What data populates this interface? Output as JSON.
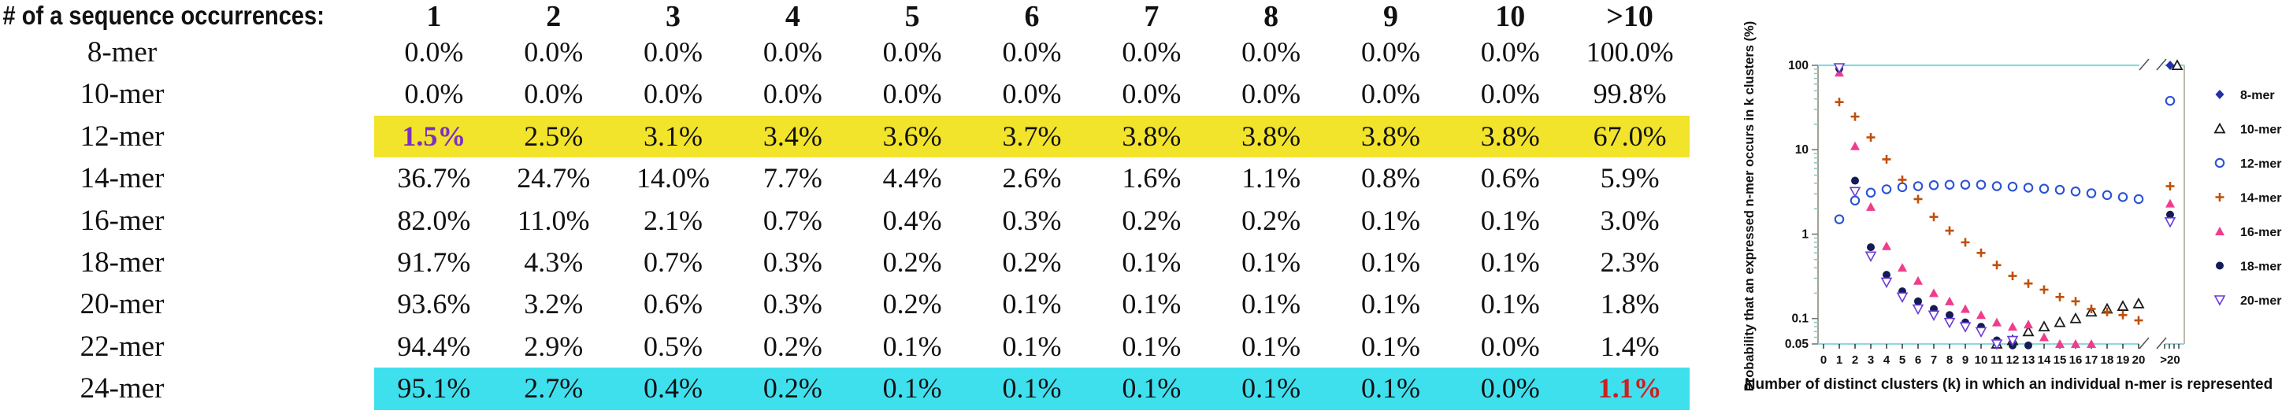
{
  "colors": {
    "highlight_yellow": "#f2e32b",
    "highlight_cyan": "#3fe0ee",
    "accent_purple": "#7b2fc4",
    "accent_red": "#cc2020",
    "axis_cyan": "#8fd8e0",
    "axis_gray": "#a3a394",
    "minor_tick": "#92c5c9"
  },
  "chart_data": [
    {
      "type": "table",
      "title": "# of a sequence occurrences:",
      "columns": [
        "1",
        "2",
        "3",
        "4",
        "5",
        "6",
        "7",
        "8",
        "9",
        "10",
        ">10"
      ],
      "rows": [
        {
          "label": "8-mer",
          "values": [
            "0.0%",
            "0.0%",
            "0.0%",
            "0.0%",
            "0.0%",
            "0.0%",
            "0.0%",
            "0.0%",
            "0.0%",
            "0.0%",
            "100.0%"
          ]
        },
        {
          "label": "10-mer",
          "values": [
            "0.0%",
            "0.0%",
            "0.0%",
            "0.0%",
            "0.0%",
            "0.0%",
            "0.0%",
            "0.0%",
            "0.0%",
            "0.0%",
            "99.8%"
          ]
        },
        {
          "label": "12-mer",
          "highlight": "highlight_yellow",
          "accent": {
            "cell": 0,
            "color": "accent_purple"
          },
          "values": [
            "1.5%",
            "2.5%",
            "3.1%",
            "3.4%",
            "3.6%",
            "3.7%",
            "3.8%",
            "3.8%",
            "3.8%",
            "3.8%",
            "67.0%"
          ]
        },
        {
          "label": "14-mer",
          "values": [
            "36.7%",
            "24.7%",
            "14.0%",
            "7.7%",
            "4.4%",
            "2.6%",
            "1.6%",
            "1.1%",
            "0.8%",
            "0.6%",
            "5.9%"
          ]
        },
        {
          "label": "16-mer",
          "values": [
            "82.0%",
            "11.0%",
            "2.1%",
            "0.7%",
            "0.4%",
            "0.3%",
            "0.2%",
            "0.2%",
            "0.1%",
            "0.1%",
            "3.0%"
          ]
        },
        {
          "label": "18-mer",
          "values": [
            "91.7%",
            "4.3%",
            "0.7%",
            "0.3%",
            "0.2%",
            "0.2%",
            "0.1%",
            "0.1%",
            "0.1%",
            "0.1%",
            "2.3%"
          ]
        },
        {
          "label": "20-mer",
          "values": [
            "93.6%",
            "3.2%",
            "0.6%",
            "0.3%",
            "0.2%",
            "0.1%",
            "0.1%",
            "0.1%",
            "0.1%",
            "0.1%",
            "1.8%"
          ]
        },
        {
          "label": "22-mer",
          "values": [
            "94.4%",
            "2.9%",
            "0.5%",
            "0.2%",
            "0.1%",
            "0.1%",
            "0.1%",
            "0.1%",
            "0.1%",
            "0.0%",
            "1.4%"
          ]
        },
        {
          "label": "24-mer",
          "highlight": "highlight_cyan",
          "accent": {
            "cell": 10,
            "color": "accent_red"
          },
          "values": [
            "95.1%",
            "2.7%",
            "0.4%",
            "0.2%",
            "0.1%",
            "0.1%",
            "0.1%",
            "0.1%",
            "0.1%",
            "0.0%",
            "1.1%"
          ]
        }
      ]
    },
    {
      "type": "scatter",
      "xlabel": "Number of distinct clusters (k) in which an individual n-mer is represented",
      "ylabel": "Probability that an expressed n-mer occurs in k clusters (%)",
      "y_scale": "log",
      "ylim": [
        0.05,
        100
      ],
      "y_tick_labels": [
        "100",
        "10",
        "1",
        "0.1",
        "0.05"
      ],
      "x_ticks": [
        "0",
        "1",
        "2",
        "3",
        "4",
        "5",
        "6",
        "7",
        "8",
        "9",
        "10",
        "11",
        "12",
        "13",
        "14",
        "15",
        "16",
        "17",
        "18",
        "19",
        "20",
        ">20"
      ],
      "axis_break_after": "20",
      "legend_position": "right",
      "grid": false,
      "series": [
        {
          "name": "8-mer",
          "marker": "diamond-filled",
          "color": "#2231a8",
          "points": [
            [
              ">20",
              100
            ]
          ]
        },
        {
          "name": "10-mer",
          "marker": "triangle-up-open",
          "color": "#1a1a1a",
          "points": [
            [
              11,
              0.05
            ],
            [
              12,
              0.055
            ],
            [
              13,
              0.07
            ],
            [
              14,
              0.08
            ],
            [
              15,
              0.09
            ],
            [
              16,
              0.1
            ],
            [
              17,
              0.12
            ],
            [
              18,
              0.13
            ],
            [
              19,
              0.14
            ],
            [
              20,
              0.15
            ],
            [
              ">20",
              99.8
            ]
          ]
        },
        {
          "name": "12-mer",
          "marker": "circle-open",
          "color": "#2a52d4",
          "points": [
            [
              1,
              1.5
            ],
            [
              2,
              2.5
            ],
            [
              3,
              3.1
            ],
            [
              4,
              3.4
            ],
            [
              5,
              3.6
            ],
            [
              6,
              3.7
            ],
            [
              7,
              3.8
            ],
            [
              8,
              3.85
            ],
            [
              9,
              3.85
            ],
            [
              10,
              3.85
            ],
            [
              11,
              3.7
            ],
            [
              12,
              3.65
            ],
            [
              13,
              3.55
            ],
            [
              14,
              3.45
            ],
            [
              15,
              3.35
            ],
            [
              16,
              3.2
            ],
            [
              17,
              3.05
            ],
            [
              18,
              2.9
            ],
            [
              19,
              2.75
            ],
            [
              20,
              2.6
            ],
            [
              ">20",
              38
            ]
          ]
        },
        {
          "name": "14-mer",
          "marker": "plus",
          "color": "#c04f0a",
          "points": [
            [
              1,
              36.7
            ],
            [
              2,
              24.7
            ],
            [
              3,
              14.0
            ],
            [
              4,
              7.7
            ],
            [
              5,
              4.4
            ],
            [
              6,
              2.6
            ],
            [
              7,
              1.6
            ],
            [
              8,
              1.1
            ],
            [
              9,
              0.8
            ],
            [
              10,
              0.6
            ],
            [
              11,
              0.43
            ],
            [
              12,
              0.32
            ],
            [
              13,
              0.26
            ],
            [
              14,
              0.22
            ],
            [
              15,
              0.18
            ],
            [
              16,
              0.16
            ],
            [
              17,
              0.13
            ],
            [
              18,
              0.12
            ],
            [
              19,
              0.11
            ],
            [
              20,
              0.095
            ],
            [
              ">20",
              3.7
            ]
          ]
        },
        {
          "name": "16-mer",
          "marker": "triangle-up-filled",
          "color": "#ef3d8c",
          "points": [
            [
              1,
              82.0
            ],
            [
              2,
              11.0
            ],
            [
              3,
              2.1
            ],
            [
              4,
              0.72
            ],
            [
              5,
              0.4
            ],
            [
              6,
              0.28
            ],
            [
              7,
              0.2
            ],
            [
              8,
              0.16
            ],
            [
              9,
              0.13
            ],
            [
              10,
              0.11
            ],
            [
              11,
              0.09
            ],
            [
              12,
              0.08
            ],
            [
              13,
              0.085
            ],
            [
              14,
              0.06
            ],
            [
              15,
              0.05
            ],
            [
              16,
              0.05
            ],
            [
              17,
              0.05
            ],
            [
              ">20",
              2.3
            ]
          ]
        },
        {
          "name": "18-mer",
          "marker": "circle-filled",
          "color": "#141b55",
          "points": [
            [
              1,
              91.7
            ],
            [
              2,
              4.3
            ],
            [
              3,
              0.7
            ],
            [
              4,
              0.33
            ],
            [
              5,
              0.21
            ],
            [
              6,
              0.16
            ],
            [
              7,
              0.13
            ],
            [
              8,
              0.11
            ],
            [
              9,
              0.09
            ],
            [
              10,
              0.08
            ],
            [
              11,
              0.055
            ],
            [
              12,
              0.048
            ],
            [
              13,
              0.048
            ],
            [
              ">20",
              1.7
            ]
          ]
        },
        {
          "name": "20-mer",
          "marker": "triangle-down-open",
          "color": "#6a3bd6",
          "points": [
            [
              1,
              93.6
            ],
            [
              2,
              3.2
            ],
            [
              3,
              0.55
            ],
            [
              4,
              0.27
            ],
            [
              5,
              0.18
            ],
            [
              6,
              0.13
            ],
            [
              7,
              0.11
            ],
            [
              8,
              0.09
            ],
            [
              9,
              0.08
            ],
            [
              10,
              0.07
            ],
            [
              11,
              0.05
            ],
            [
              12,
              0.055
            ],
            [
              ">20",
              1.4
            ]
          ]
        }
      ]
    }
  ]
}
